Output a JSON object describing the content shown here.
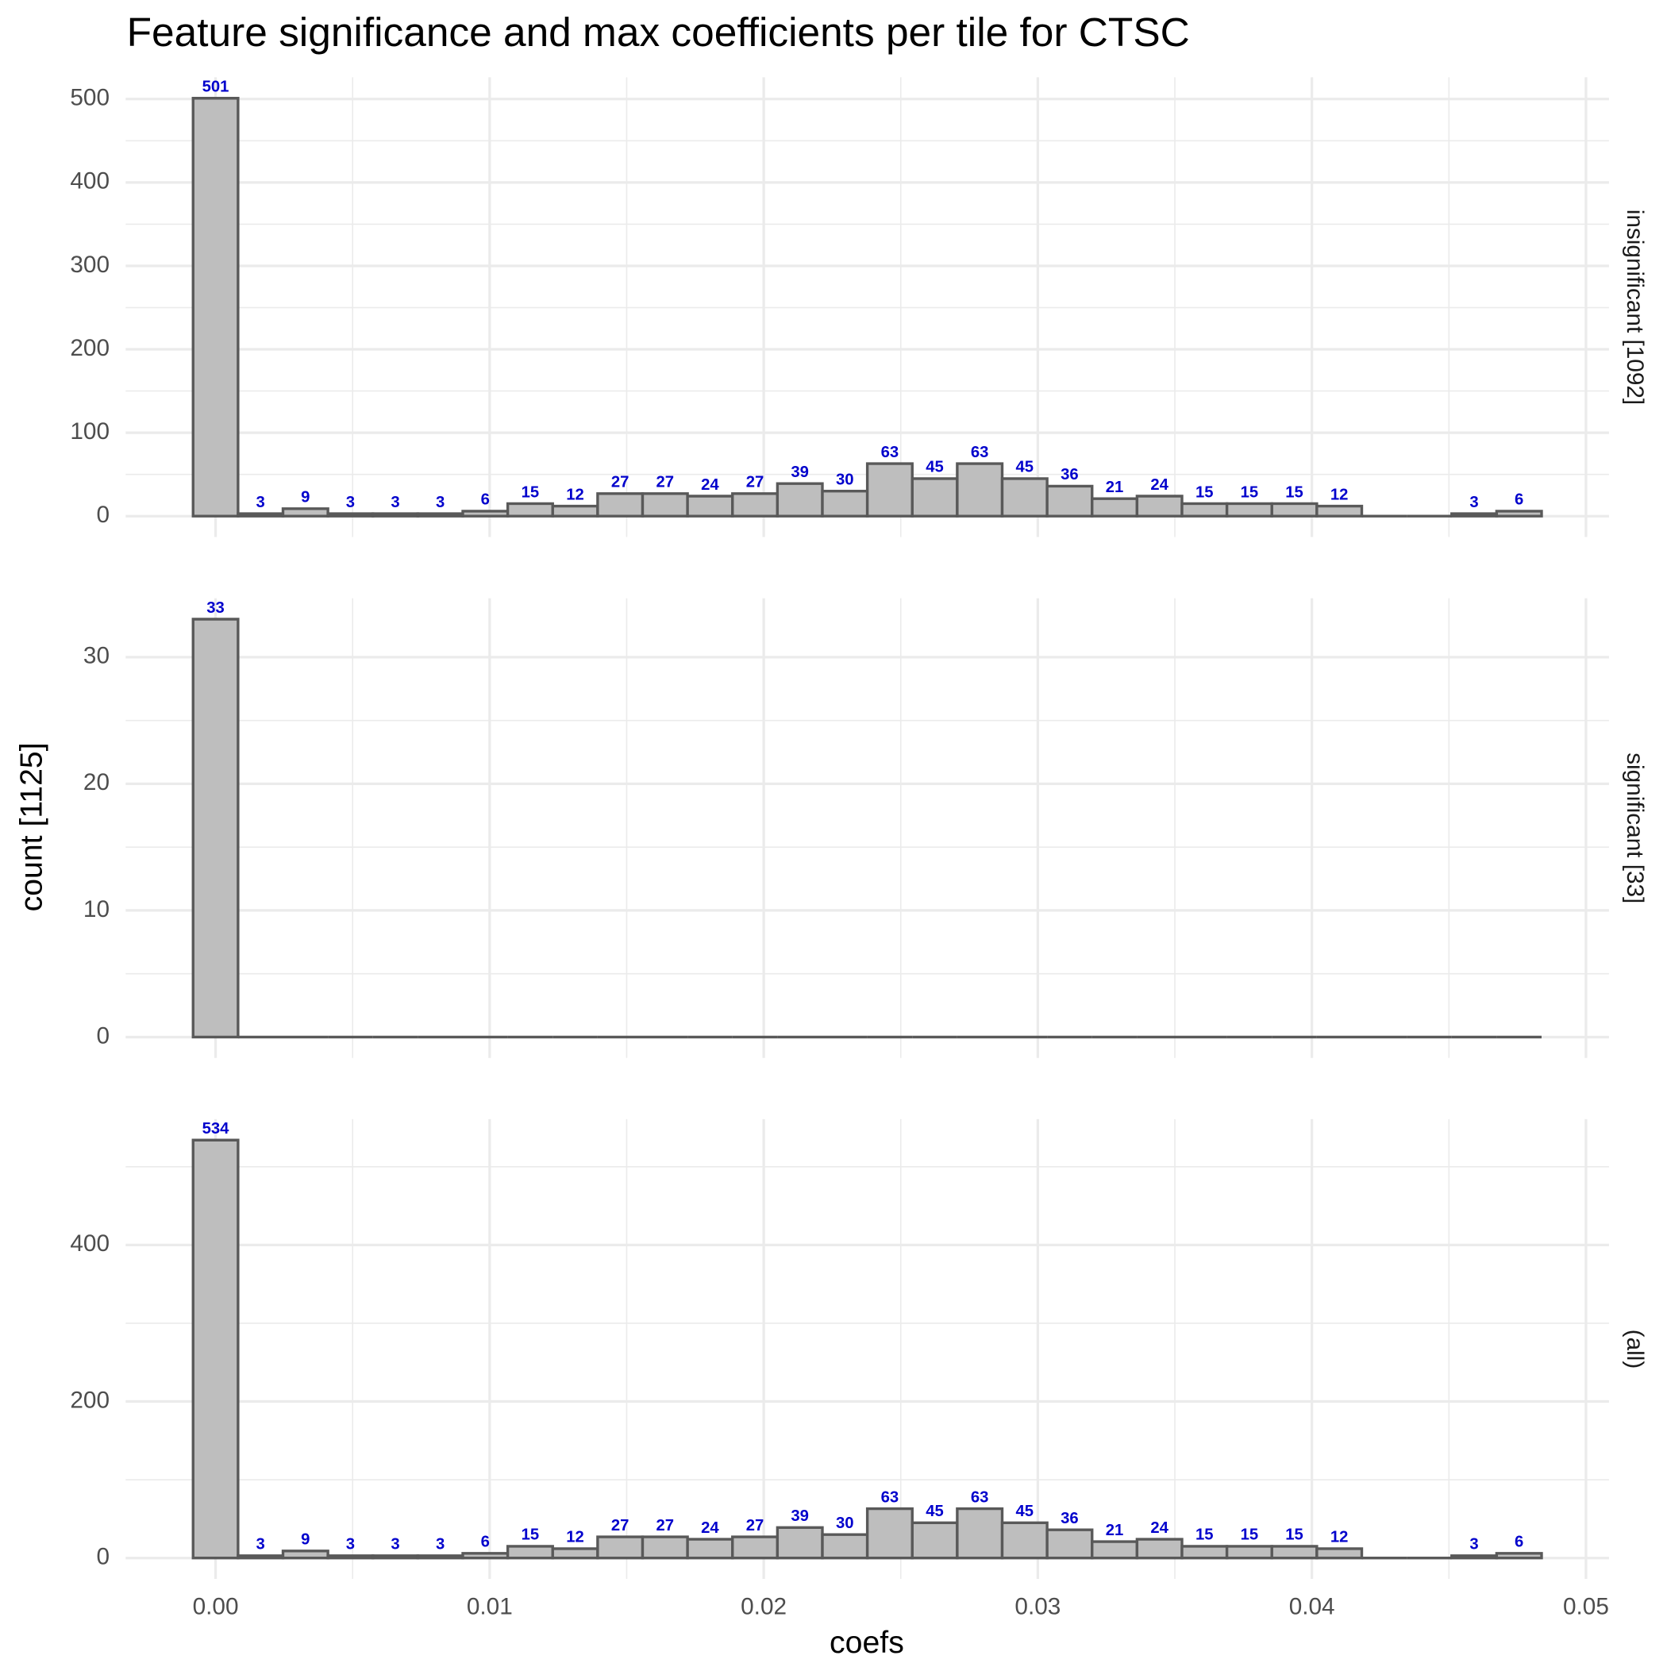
{
  "chart_data": {
    "type": "histogram",
    "title": "Feature significance and max coefficients per tile for CTSC",
    "x_label": "coefs",
    "y_label": "count [1125]",
    "bins": [
      -0.00082,
      0.00082,
      0.00246,
      0.0041,
      0.00574,
      0.00738,
      0.00902,
      0.01066,
      0.0123,
      0.01394,
      0.01558,
      0.01722,
      0.01886,
      0.0205,
      0.02214,
      0.02378,
      0.02542,
      0.02706,
      0.0287,
      0.03034,
      0.03198,
      0.03362,
      0.03526,
      0.0369,
      0.03854,
      0.04018,
      0.04182,
      0.04346,
      0.0451,
      0.04674,
      0.04838
    ],
    "xlim": [
      -0.00328,
      0.05084
    ],
    "xticks": [
      {
        "value": 0,
        "label": "0.00"
      },
      0.01,
      0.02,
      0.03,
      0.04,
      0.05
    ],
    "grid": true,
    "color": "#bebebe",
    "edge_color": "#595959",
    "label_color": "#0000cc",
    "facets": [
      {
        "label": "insignificant [1092]",
        "values": [
          501,
          3,
          9,
          3,
          3,
          3,
          6,
          15,
          12,
          27,
          27,
          24,
          27,
          39,
          30,
          63,
          45,
          63,
          45,
          36,
          21,
          24,
          15,
          15,
          15,
          12,
          0,
          0,
          3,
          6
        ],
        "ylim": [
          -25.05,
          526.05
        ],
        "yticks": [
          0,
          100,
          200,
          300,
          400,
          500
        ]
      },
      {
        "label": "significant [33]",
        "values": [
          33,
          0,
          0,
          0,
          0,
          0,
          0,
          0,
          0,
          0,
          0,
          0,
          0,
          0,
          0,
          0,
          0,
          0,
          0,
          0,
          0,
          0,
          0,
          0,
          0,
          0,
          0,
          0,
          0,
          0
        ],
        "ylim": [
          -1.65,
          34.65
        ],
        "yticks": [
          0,
          10,
          20,
          30
        ]
      },
      {
        "label": "(all)",
        "values": [
          534,
          3,
          9,
          3,
          3,
          3,
          6,
          15,
          12,
          27,
          27,
          24,
          27,
          39,
          30,
          63,
          45,
          63,
          45,
          36,
          21,
          24,
          15,
          15,
          15,
          12,
          0,
          0,
          3,
          6
        ],
        "ylim": [
          -26.7,
          560.7
        ],
        "yticks": [
          0,
          200,
          400
        ]
      }
    ]
  }
}
